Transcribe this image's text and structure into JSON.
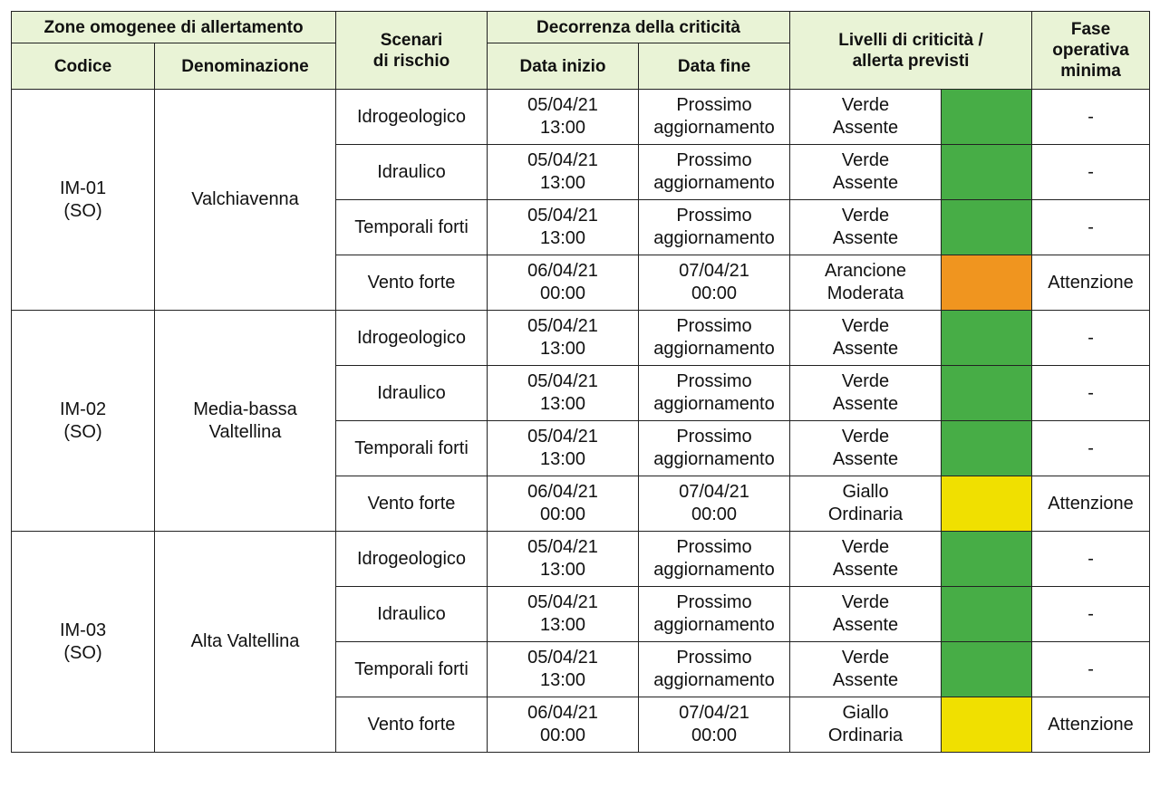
{
  "headers": {
    "zone_group": "Zone omogenee di allertamento",
    "code": "Codice",
    "name": "Denominazione",
    "scenario": "Scenari\ndi rischio",
    "period_group": "Decorrenza della criticità",
    "start": "Data inizio",
    "end": "Data fine",
    "levels": "Livelli di criticità /\nallerta previsti",
    "phase": "Fase\noperativa\nminima"
  },
  "colors": {
    "header_bg": "#e9f3d6",
    "verde": "#47ad46",
    "arancione": "#f0951f",
    "giallo": "#f0e000"
  },
  "zones": [
    {
      "code": "IM-01\n(SO)",
      "name": "Valchiavenna",
      "rows": [
        {
          "scenario": "Idrogeologico",
          "start": "05/04/21\n13:00",
          "end": "Prossimo\naggiornamento",
          "level": "Verde\nAssente",
          "color": "#47ad46",
          "phase": "-"
        },
        {
          "scenario": "Idraulico",
          "start": "05/04/21\n13:00",
          "end": "Prossimo\naggiornamento",
          "level": "Verde\nAssente",
          "color": "#47ad46",
          "phase": "-"
        },
        {
          "scenario": "Temporali forti",
          "start": "05/04/21\n13:00",
          "end": "Prossimo\naggiornamento",
          "level": "Verde\nAssente",
          "color": "#47ad46",
          "phase": "-"
        },
        {
          "scenario": "Vento forte",
          "start": "06/04/21\n00:00",
          "end": "07/04/21\n00:00",
          "level": "Arancione\nModerata",
          "color": "#f0951f",
          "phase": "Attenzione"
        }
      ]
    },
    {
      "code": "IM-02\n(SO)",
      "name": "Media-bassa\nValtellina",
      "rows": [
        {
          "scenario": "Idrogeologico",
          "start": "05/04/21\n13:00",
          "end": "Prossimo\naggiornamento",
          "level": "Verde\nAssente",
          "color": "#47ad46",
          "phase": "-"
        },
        {
          "scenario": "Idraulico",
          "start": "05/04/21\n13:00",
          "end": "Prossimo\naggiornamento",
          "level": "Verde\nAssente",
          "color": "#47ad46",
          "phase": "-"
        },
        {
          "scenario": "Temporali forti",
          "start": "05/04/21\n13:00",
          "end": "Prossimo\naggiornamento",
          "level": "Verde\nAssente",
          "color": "#47ad46",
          "phase": "-"
        },
        {
          "scenario": "Vento forte",
          "start": "06/04/21\n00:00",
          "end": "07/04/21\n00:00",
          "level": "Giallo\nOrdinaria",
          "color": "#f0e000",
          "phase": "Attenzione"
        }
      ]
    },
    {
      "code": "IM-03\n(SO)",
      "name": "Alta Valtellina",
      "rows": [
        {
          "scenario": "Idrogeologico",
          "start": "05/04/21\n13:00",
          "end": "Prossimo\naggiornamento",
          "level": "Verde\nAssente",
          "color": "#47ad46",
          "phase": "-"
        },
        {
          "scenario": "Idraulico",
          "start": "05/04/21\n13:00",
          "end": "Prossimo\naggiornamento",
          "level": "Verde\nAssente",
          "color": "#47ad46",
          "phase": "-"
        },
        {
          "scenario": "Temporali forti",
          "start": "05/04/21\n13:00",
          "end": "Prossimo\naggiornamento",
          "level": "Verde\nAssente",
          "color": "#47ad46",
          "phase": "-"
        },
        {
          "scenario": "Vento forte",
          "start": "06/04/21\n00:00",
          "end": "07/04/21\n00:00",
          "level": "Giallo\nOrdinaria",
          "color": "#f0e000",
          "phase": "Attenzione"
        }
      ]
    }
  ]
}
